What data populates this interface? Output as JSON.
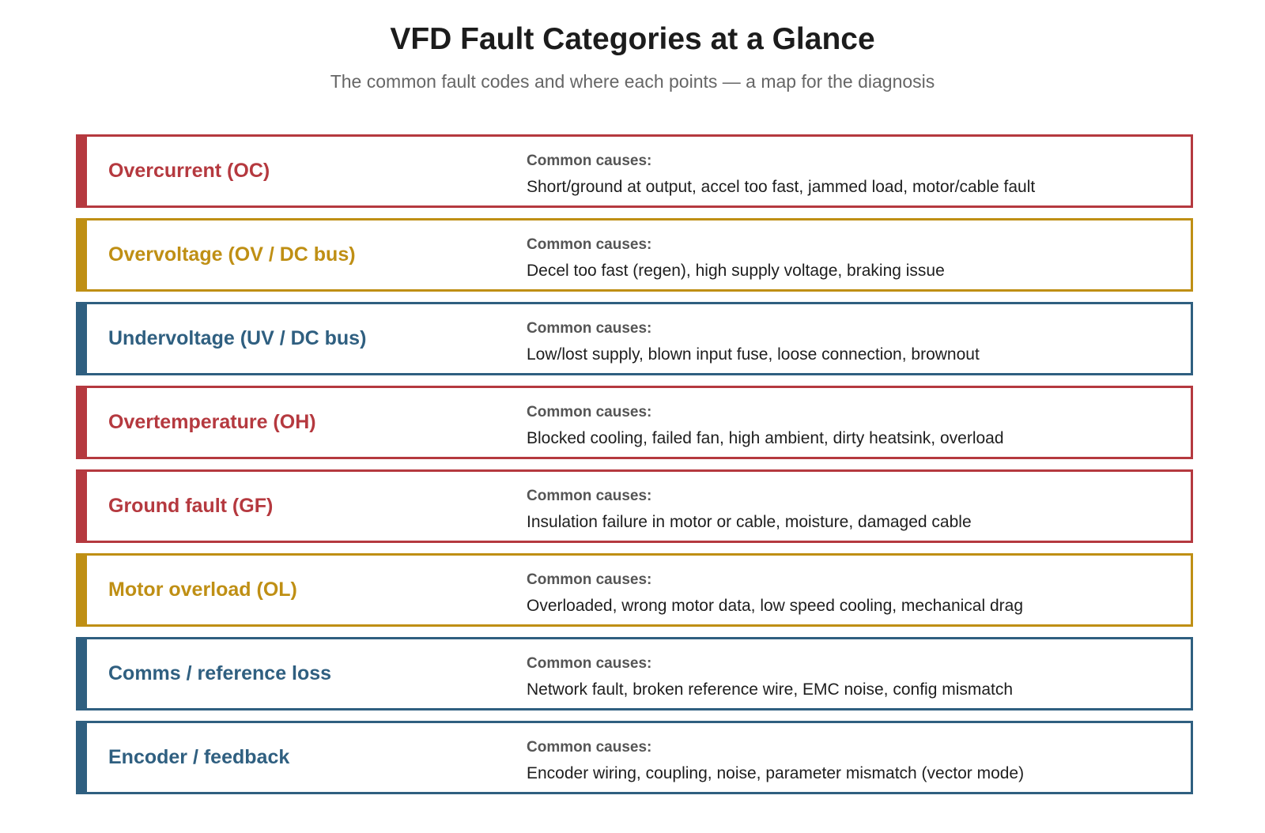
{
  "header": {
    "title": "VFD Fault Categories at a Glance",
    "subtitle": "The common fault codes and where each points — a map for the diagnosis"
  },
  "colors": {
    "red": "#b5393f",
    "gold": "#bf8f14",
    "blue": "#2f5f80"
  },
  "faults": [
    {
      "name": "Overcurrent (OC)",
      "color": "#b5393f",
      "causes_label": "Common causes:",
      "causes": "Short/ground at output, accel too fast, jammed load, motor/cable fault"
    },
    {
      "name": "Overvoltage (OV / DC bus)",
      "color": "#bf8f14",
      "causes_label": "Common causes:",
      "causes": "Decel too fast (regen), high supply voltage, braking issue"
    },
    {
      "name": "Undervoltage (UV / DC bus)",
      "color": "#2f5f80",
      "causes_label": "Common causes:",
      "causes": "Low/lost supply, blown input fuse, loose connection, brownout"
    },
    {
      "name": "Overtemperature (OH)",
      "color": "#b5393f",
      "causes_label": "Common causes:",
      "causes": "Blocked cooling, failed fan, high ambient, dirty heatsink, overload"
    },
    {
      "name": "Ground fault (GF)",
      "color": "#b5393f",
      "causes_label": "Common causes:",
      "causes": "Insulation failure in motor or cable, moisture, damaged cable"
    },
    {
      "name": "Motor overload (OL)",
      "color": "#bf8f14",
      "causes_label": "Common causes:",
      "causes": "Overloaded, wrong motor data, low speed cooling, mechanical drag"
    },
    {
      "name": "Comms / reference loss",
      "color": "#2f5f80",
      "causes_label": "Common causes:",
      "causes": "Network fault, broken reference wire, EMC noise, config mismatch"
    },
    {
      "name": "Encoder / feedback",
      "color": "#2f5f80",
      "causes_label": "Common causes:",
      "causes": "Encoder wiring, coupling, noise, parameter mismatch (vector mode)"
    }
  ]
}
